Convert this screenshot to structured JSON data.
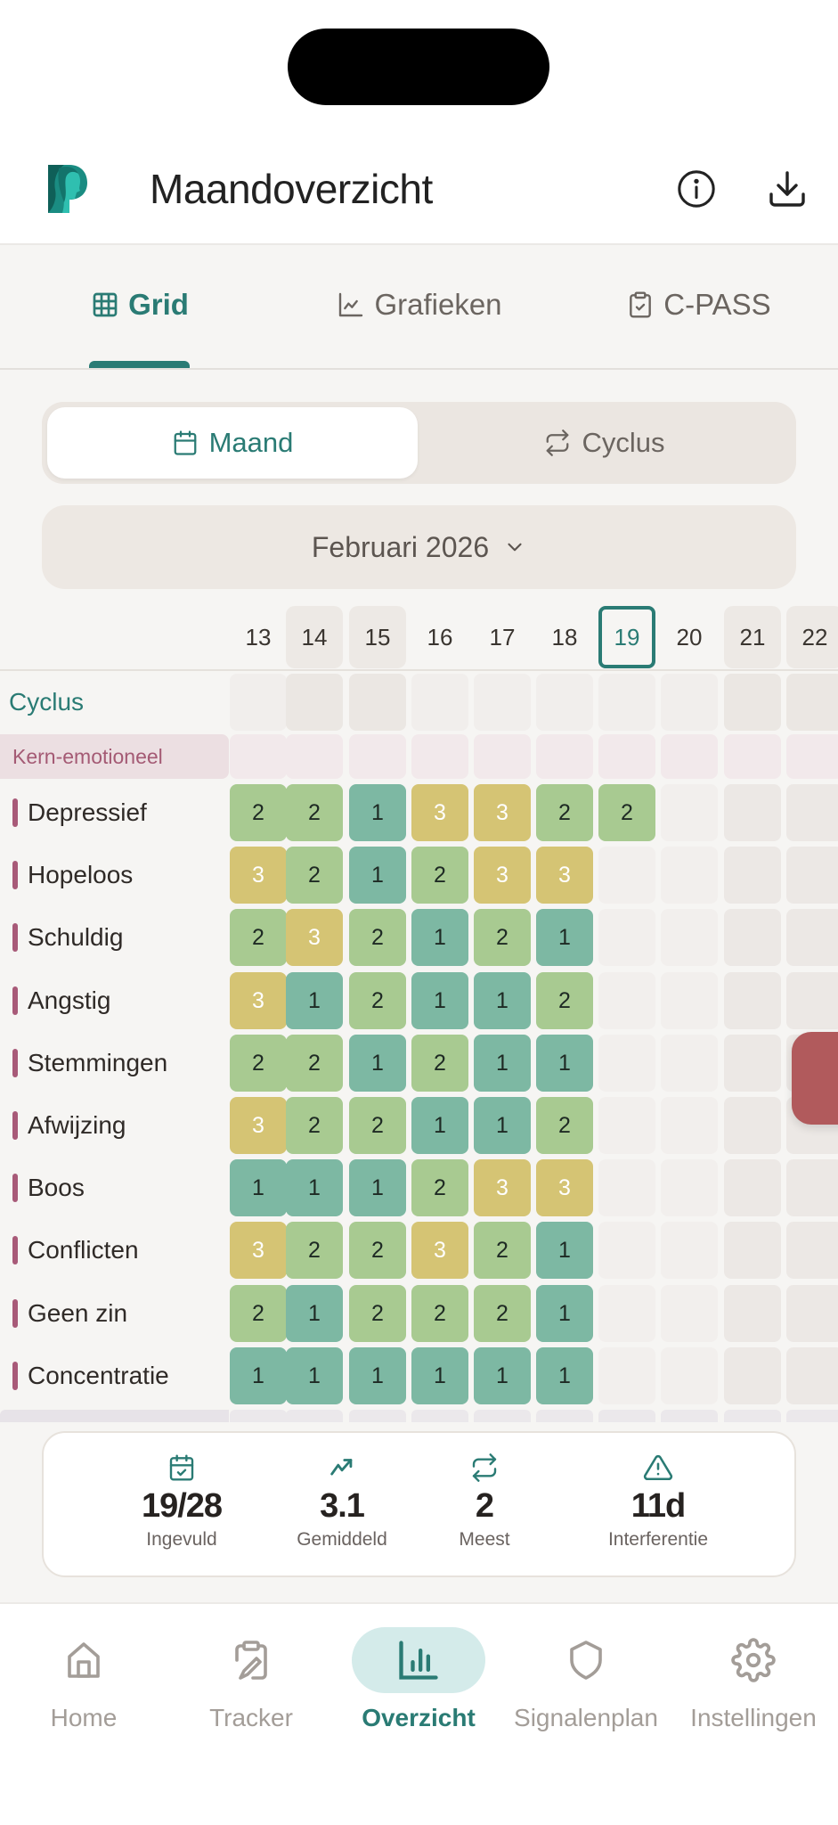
{
  "header": {
    "title": "Maandoverzicht",
    "info_icon": "info-icon",
    "download_icon": "download-icon"
  },
  "tabs": [
    {
      "label": "Grid",
      "icon": "grid-icon",
      "active": true
    },
    {
      "label": "Grafieken",
      "icon": "line-chart-icon",
      "active": false
    },
    {
      "label": "C-PASS",
      "icon": "clipboard-check-icon",
      "active": false
    }
  ],
  "segment": {
    "options": [
      {
        "label": "Maand",
        "icon": "calendar-icon",
        "active": true
      },
      {
        "label": "Cyclus",
        "icon": "repeat-icon",
        "active": false
      }
    ]
  },
  "month_selector": {
    "label": "Februari 2026",
    "icon": "chevron-down-icon"
  },
  "grid": {
    "days": [
      "13",
      "14",
      "15",
      "16",
      "17",
      "18",
      "19",
      "20",
      "21",
      "22"
    ],
    "today": "19",
    "weekend_days": [
      "14",
      "15",
      "21",
      "22"
    ],
    "cycle_row_label": "Cyclus",
    "section_label": "Kern-emotioneel",
    "rows": [
      {
        "label": "Depressief",
        "values": [
          2,
          2,
          1,
          3,
          3,
          2,
          2,
          null,
          null,
          null
        ]
      },
      {
        "label": "Hopeloos",
        "values": [
          3,
          2,
          1,
          2,
          3,
          3,
          null,
          null,
          null,
          null
        ]
      },
      {
        "label": "Schuldig",
        "values": [
          2,
          3,
          2,
          1,
          2,
          1,
          null,
          null,
          null,
          null
        ]
      },
      {
        "label": "Angstig",
        "values": [
          3,
          1,
          2,
          1,
          1,
          2,
          null,
          null,
          null,
          null
        ]
      },
      {
        "label": "Stemmingen",
        "values": [
          2,
          2,
          1,
          2,
          1,
          1,
          null,
          null,
          null,
          null
        ]
      },
      {
        "label": "Afwijzing",
        "values": [
          3,
          2,
          2,
          1,
          1,
          2,
          null,
          null,
          null,
          null
        ]
      },
      {
        "label": "Boos",
        "values": [
          1,
          1,
          1,
          2,
          3,
          3,
          null,
          null,
          null,
          null
        ]
      },
      {
        "label": "Conflicten",
        "values": [
          3,
          2,
          2,
          3,
          2,
          1,
          null,
          null,
          null,
          null
        ]
      },
      {
        "label": "Geen zin",
        "values": [
          2,
          1,
          2,
          2,
          2,
          1,
          null,
          null,
          null,
          null
        ]
      },
      {
        "label": "Concentratie",
        "values": [
          1,
          1,
          1,
          1,
          1,
          1,
          null,
          null,
          null,
          null
        ]
      }
    ],
    "colors": {
      "1": "#7db8a3",
      "2": "#a8ca91",
      "3": "#d5c474",
      "accent": "#2a7b74",
      "section": "#a85a78"
    }
  },
  "stats": [
    {
      "value": "19/28",
      "label": "Ingevuld",
      "icon": "calendar-check-icon"
    },
    {
      "value": "3.1",
      "label": "Gemiddeld",
      "icon": "trending-up-icon"
    },
    {
      "value": "2",
      "label": "Meest",
      "icon": "repeat-icon"
    },
    {
      "value": "11d",
      "label": "Interferentie",
      "icon": "alert-triangle-icon"
    }
  ],
  "bottom_nav": [
    {
      "label": "Home",
      "icon": "home-icon",
      "active": false
    },
    {
      "label": "Tracker",
      "icon": "clipboard-pen-icon",
      "active": false
    },
    {
      "label": "Overzicht",
      "icon": "bar-chart-icon",
      "active": true
    },
    {
      "label": "Signalenplan",
      "icon": "shield-icon",
      "active": false
    },
    {
      "label": "Instellingen",
      "icon": "gear-icon",
      "active": false
    }
  ]
}
